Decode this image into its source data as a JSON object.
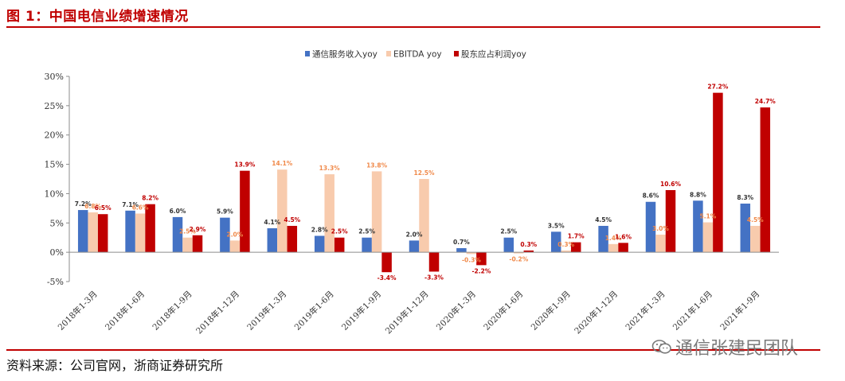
{
  "figure_title": "图 1：中国电信业绩增速情况",
  "source_note": "资料来源：公司官网，浙商证券研究所",
  "watermark_text": "通信张建民团队",
  "watermark_icon": "wechat-icon",
  "chart_data": {
    "type": "bar",
    "title": "",
    "xlabel": "",
    "ylabel": "",
    "ylim": [
      -5,
      30
    ],
    "yticks": [
      "-5%",
      "0%",
      "5%",
      "10%",
      "15%",
      "20%",
      "25%",
      "30%"
    ],
    "grid": false,
    "legend_position": "top-center",
    "categories": [
      "2018年1-3月",
      "2018年1-6月",
      "2018年1-9月",
      "2018年1-12月",
      "2019年1-3月",
      "2019年1-6月",
      "2019年1-9月",
      "2019年1-12月",
      "2020年1-3月",
      "2020年1-6月",
      "2020年1-9月",
      "2020年1-12月",
      "2021年1-3月",
      "2021年1-6月",
      "2021年1-9月"
    ],
    "series": [
      {
        "name": "通信服务收入yoy",
        "color": "#4472c4",
        "label_color": "#333333",
        "values": [
          7.2,
          7.1,
          6.0,
          5.9,
          4.1,
          2.8,
          2.5,
          2.0,
          0.7,
          2.5,
          3.5,
          4.5,
          8.6,
          8.8,
          8.3
        ],
        "labels": [
          "7.2%",
          "7.1%",
          "6.0%",
          "5.9%",
          "4.1%",
          "2.8%",
          "2.5%",
          "2.0%",
          "0.7%",
          "2.5%",
          "3.5%",
          "4.5%",
          "8.6%",
          "8.8%",
          "8.3%"
        ]
      },
      {
        "name": "EBITDA yoy",
        "color": "#f8cbad",
        "label_color": "#f08a4b",
        "values": [
          6.8,
          6.6,
          2.5,
          2.0,
          14.1,
          13.3,
          13.8,
          12.5,
          -0.3,
          -0.2,
          0.3,
          1.4,
          3.0,
          5.1,
          4.5
        ],
        "labels": [
          "6.8%",
          "6.6%",
          "2.5%",
          "2.0%",
          "14.1%",
          "13.3%",
          "13.8%",
          "12.5%",
          "-0.3%",
          "-0.2%",
          "0.3%",
          "1.4%",
          "3.0%",
          "5.1%",
          "4.5%"
        ]
      },
      {
        "name": "股东应占利润yoy",
        "color": "#c00000",
        "label_color": "#c00000",
        "values": [
          6.5,
          8.2,
          2.9,
          13.9,
          4.5,
          2.5,
          -3.4,
          -3.3,
          -2.2,
          0.3,
          1.7,
          1.6,
          10.6,
          27.2,
          24.7
        ],
        "labels": [
          "6.5%",
          "8.2%",
          "2.9%",
          "13.9%",
          "4.5%",
          "2.5%",
          "-3.4%",
          "-3.3%",
          "-2.2%",
          "0.3%",
          "1.7%",
          "1.6%",
          "10.6%",
          "27.2%",
          "24.7%"
        ]
      }
    ]
  }
}
